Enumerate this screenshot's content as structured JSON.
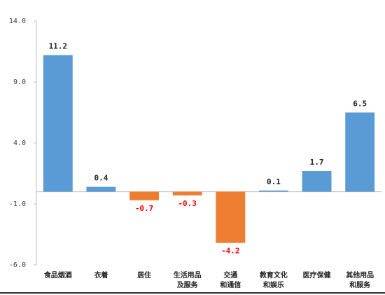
{
  "chart_data": {
    "type": "bar",
    "categories": [
      [
        "食品烟酒"
      ],
      [
        "衣着"
      ],
      [
        "居住"
      ],
      [
        "生活用品",
        "及服务"
      ],
      [
        "交通",
        "和通信"
      ],
      [
        "教育文化",
        "和娱乐"
      ],
      [
        "医疗保健"
      ],
      [
        "其他用品",
        "和服务"
      ]
    ],
    "values": [
      11.2,
      0.4,
      -0.7,
      -0.3,
      -4.2,
      0.1,
      1.7,
      6.5
    ],
    "value_labels": [
      "11.2",
      "0.4",
      "-0.7",
      "-0.3",
      "-4.2",
      "0.1",
      "1.7",
      "6.5"
    ],
    "ylim": [
      -6.0,
      14.0
    ],
    "yticks": [
      14.0,
      9.0,
      4.0,
      -1.0,
      -6.0
    ],
    "ytick_labels": [
      "14.0",
      "9.0",
      "4.0",
      "-1.0",
      "-6.0"
    ],
    "colors": {
      "positive_bar": "#5b9bd5",
      "negative_bar": "#ed7d31",
      "positive_label": "#222222",
      "negative_label": "#ff0000",
      "axis": "#bfbfbf"
    },
    "grid": false,
    "legend": "none"
  }
}
